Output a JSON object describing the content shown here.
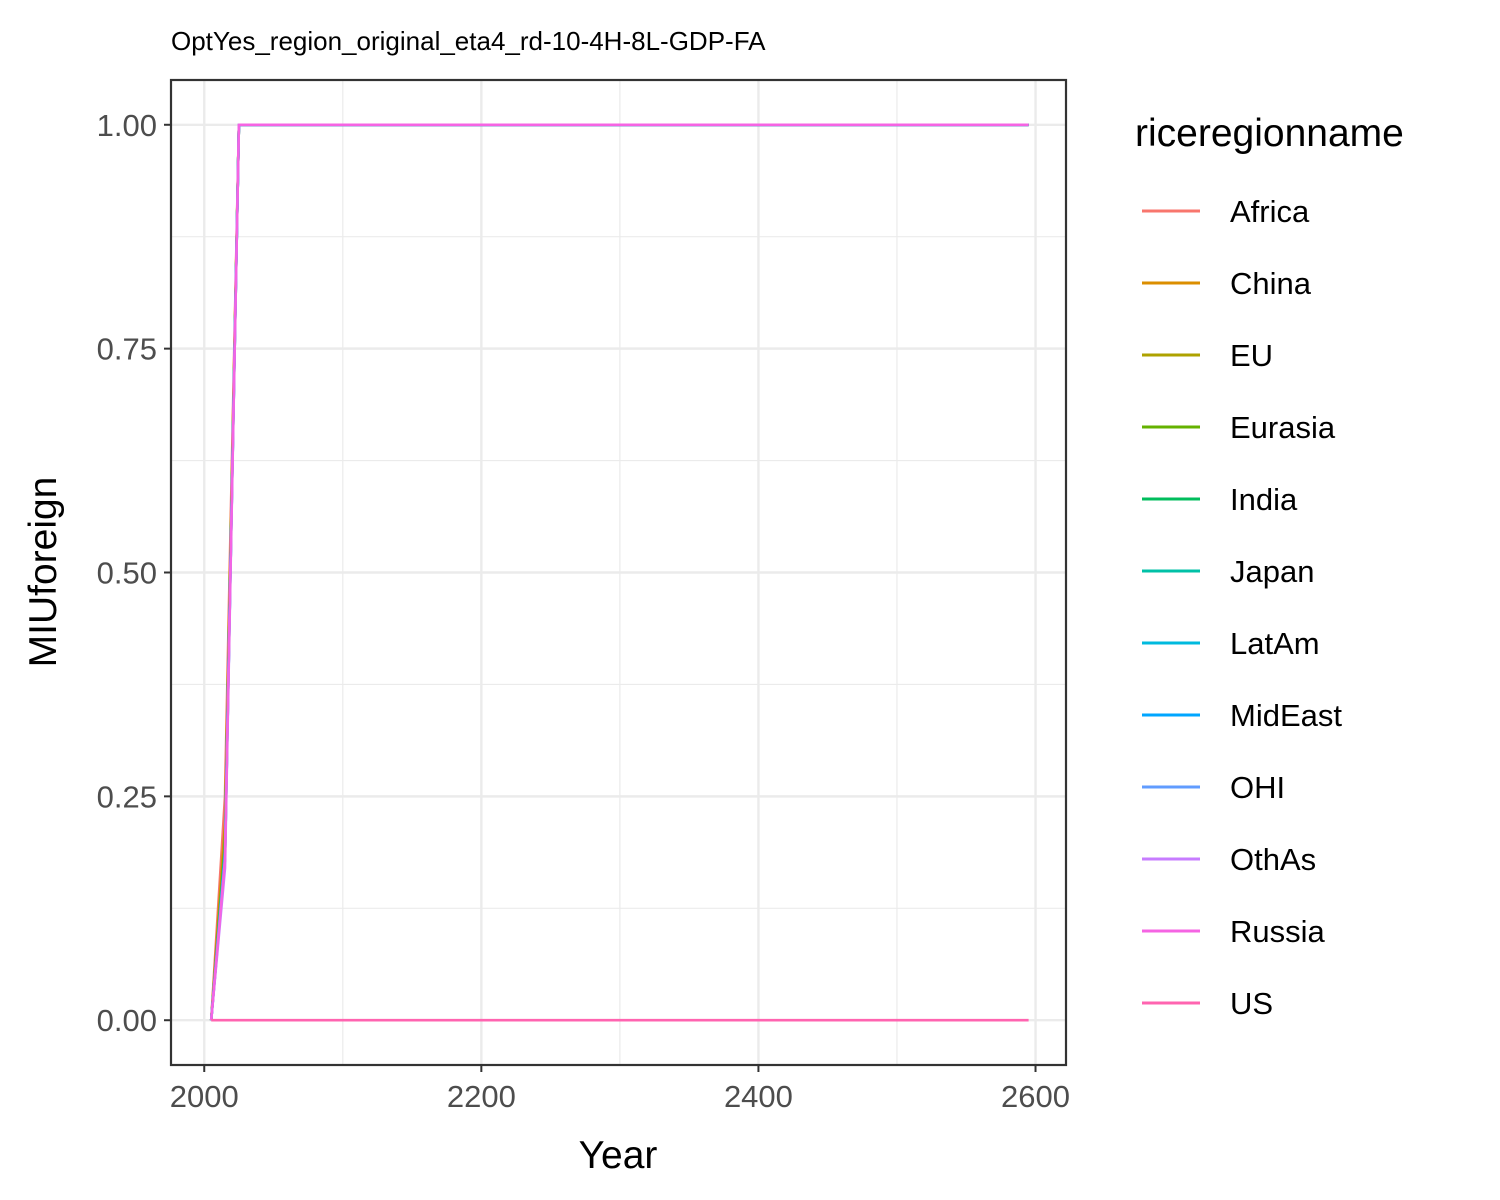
{
  "chart_data": {
    "type": "line",
    "title": "OptYes_region_original_eta4_rd-10-4H-8L-GDP-FA",
    "xlabel": "Year",
    "ylabel": "MIUforeign",
    "xlim": [
      1976,
      2622
    ],
    "ylim": [
      -0.05,
      1.05
    ],
    "x_ticks": [
      2000,
      2200,
      2400,
      2600
    ],
    "x_tick_labels": [
      "2000",
      "2200",
      "2400",
      "2600"
    ],
    "x_minor_ticks": [
      2100,
      2300,
      2500
    ],
    "y_ticks": [
      0,
      0.25,
      0.5,
      0.75,
      1
    ],
    "y_tick_labels": [
      "0.00",
      "0.25",
      "0.50",
      "0.75",
      "1.00"
    ],
    "y_minor_ticks": [
      0.125,
      0.375,
      0.625,
      0.875
    ],
    "grid": true,
    "legend_title": "riceregionname",
    "legend_position": "right",
    "series": [
      {
        "name": "Africa",
        "color": "#F8766D",
        "x": [
          2005,
          2015,
          2025,
          2595
        ],
        "y": [
          0,
          0.25,
          1,
          1
        ]
      },
      {
        "name": "China",
        "color": "#DB8E00",
        "x": [
          2005,
          2015,
          2025,
          2595
        ],
        "y": [
          0,
          0.22,
          1,
          1
        ]
      },
      {
        "name": "EU",
        "color": "#AEA200",
        "x": [
          2005,
          2015,
          2025,
          2595
        ],
        "y": [
          0,
          0.2,
          1,
          1
        ]
      },
      {
        "name": "Eurasia",
        "color": "#64B200",
        "x": [
          2005,
          2015,
          2025,
          2595
        ],
        "y": [
          0,
          0.2,
          1,
          1
        ]
      },
      {
        "name": "India",
        "color": "#00BD5C",
        "x": [
          2005,
          2015,
          2025,
          2595
        ],
        "y": [
          0,
          0.19,
          1,
          1
        ]
      },
      {
        "name": "Japan",
        "color": "#00C1A7",
        "x": [
          2005,
          2015,
          2025,
          2595
        ],
        "y": [
          0,
          0.18,
          1,
          1
        ]
      },
      {
        "name": "LatAm",
        "color": "#00BADE",
        "x": [
          2005,
          2015,
          2025,
          2595
        ],
        "y": [
          0,
          0.19,
          1,
          1
        ]
      },
      {
        "name": "MidEast",
        "color": "#00A6FF",
        "x": [
          2005,
          2015,
          2025,
          2595
        ],
        "y": [
          0,
          0.18,
          1,
          1
        ]
      },
      {
        "name": "OHI",
        "color": "#619CFF",
        "x": [
          2005,
          2015,
          2025,
          2595
        ],
        "y": [
          0,
          0.18,
          1,
          1
        ]
      },
      {
        "name": "OthAs",
        "color": "#C77CFF",
        "x": [
          2005,
          2015,
          2025,
          2595
        ],
        "y": [
          0,
          0.17,
          1,
          1
        ]
      },
      {
        "name": "Russia",
        "color": "#F564E3",
        "x": [
          2005,
          2015,
          2025,
          2595
        ],
        "y": [
          0,
          0.18,
          1,
          1
        ]
      },
      {
        "name": "US",
        "color": "#FF64B0",
        "x": [
          2005,
          2595
        ],
        "y": [
          0,
          0
        ]
      }
    ]
  }
}
